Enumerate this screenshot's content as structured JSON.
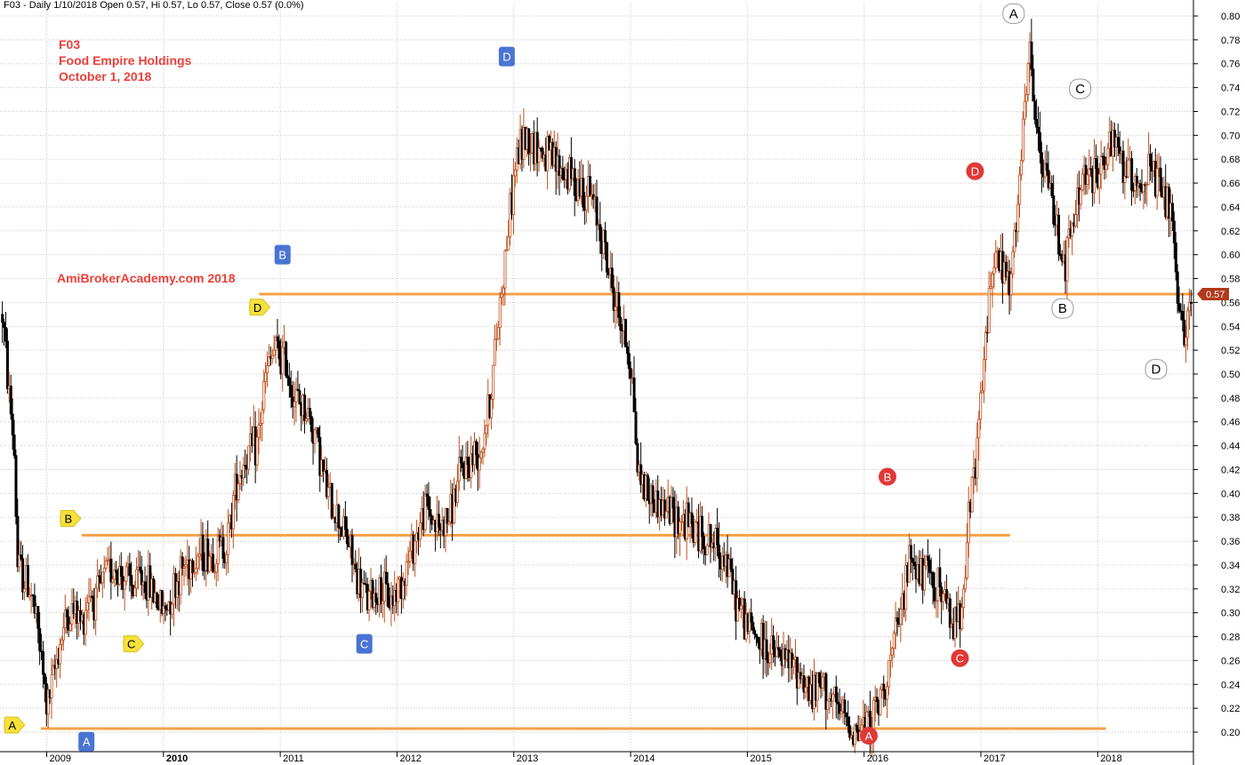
{
  "header": {
    "info_line": "F03 - Daily 1/10/2018 Open 0.57, Hi 0.57, Lo 0.57, Close 0.57 (0.0%)"
  },
  "annotation": {
    "symbol": "F03",
    "company": "Food Empire Holdings",
    "date": "October 1, 2018",
    "watermark": "AmiBrokerAcademy.com  2018"
  },
  "colors": {
    "background": "#ffffff",
    "grid": "#c8c8c8",
    "up_candle": "#c0501e",
    "down_candle": "#000000",
    "support_line": "#f5a04a",
    "price_badge": "#b03a1a",
    "marker_yellow": "#f5e13a",
    "marker_blue": "#4a74d4",
    "marker_red": "#e03838",
    "marker_white": "#ffffff"
  },
  "chart_data": {
    "type": "candlestick",
    "ylim": [
      0.19,
      0.81
    ],
    "y_ticks": [
      "0.80",
      "0.78",
      "0.76",
      "0.74",
      "0.72",
      "0.70",
      "0.68",
      "0.66",
      "0.64",
      "0.62",
      "0.60",
      "0.58",
      "0.56",
      "0.54",
      "0.52",
      "0.50",
      "0.48",
      "0.46",
      "0.44",
      "0.42",
      "0.40",
      "0.38",
      "0.36",
      "0.34",
      "0.32",
      "0.30",
      "0.28",
      "0.26",
      "0.24",
      "0.22",
      "0.20"
    ],
    "x_range": [
      2008.6,
      2018.82
    ],
    "x_ticks": [
      {
        "label": "2009",
        "value": 2009.0,
        "bold": false
      },
      {
        "label": "2010",
        "value": 2010.0,
        "bold": true
      },
      {
        "label": "2011",
        "value": 2011.0,
        "bold": false
      },
      {
        "label": "2012",
        "value": 2012.0,
        "bold": false
      },
      {
        "label": "2013",
        "value": 2013.0,
        "bold": false
      },
      {
        "label": "2014",
        "value": 2014.0,
        "bold": false
      },
      {
        "label": "2015",
        "value": 2015.0,
        "bold": false
      },
      {
        "label": "2016",
        "value": 2016.0,
        "bold": false
      },
      {
        "label": "2017",
        "value": 2017.0,
        "bold": false
      },
      {
        "label": "2018",
        "value": 2018.0,
        "bold": false
      }
    ],
    "last_price_label": "0.57",
    "last_price": 0.567,
    "price_path": [
      [
        2008.62,
        0.55
      ],
      [
        2008.68,
        0.48
      ],
      [
        2008.72,
        0.44
      ],
      [
        2008.75,
        0.34
      ],
      [
        2008.8,
        0.33
      ],
      [
        2008.86,
        0.32
      ],
      [
        2008.93,
        0.28
      ],
      [
        2009.0,
        0.22
      ],
      [
        2009.05,
        0.24
      ],
      [
        2009.1,
        0.27
      ],
      [
        2009.18,
        0.3
      ],
      [
        2009.25,
        0.3
      ],
      [
        2009.3,
        0.29
      ],
      [
        2009.36,
        0.32
      ],
      [
        2009.42,
        0.31
      ],
      [
        2009.5,
        0.33
      ],
      [
        2009.58,
        0.34
      ],
      [
        2009.66,
        0.33
      ],
      [
        2009.75,
        0.32
      ],
      [
        2009.8,
        0.33
      ],
      [
        2009.9,
        0.32
      ],
      [
        2010.0,
        0.3
      ],
      [
        2010.08,
        0.32
      ],
      [
        2010.18,
        0.34
      ],
      [
        2010.3,
        0.35
      ],
      [
        2010.45,
        0.35
      ],
      [
        2010.55,
        0.36
      ],
      [
        2010.62,
        0.41
      ],
      [
        2010.7,
        0.43
      ],
      [
        2010.8,
        0.44
      ],
      [
        2010.88,
        0.5
      ],
      [
        2010.95,
        0.52
      ],
      [
        2011.05,
        0.51
      ],
      [
        2011.12,
        0.48
      ],
      [
        2011.22,
        0.47
      ],
      [
        2011.3,
        0.45
      ],
      [
        2011.4,
        0.4
      ],
      [
        2011.5,
        0.38
      ],
      [
        2011.58,
        0.36
      ],
      [
        2011.65,
        0.33
      ],
      [
        2011.75,
        0.31
      ],
      [
        2011.85,
        0.32
      ],
      [
        2011.95,
        0.31
      ],
      [
        2012.05,
        0.33
      ],
      [
        2012.15,
        0.36
      ],
      [
        2012.25,
        0.39
      ],
      [
        2012.35,
        0.37
      ],
      [
        2012.45,
        0.38
      ],
      [
        2012.55,
        0.42
      ],
      [
        2012.65,
        0.43
      ],
      [
        2012.72,
        0.44
      ],
      [
        2012.8,
        0.48
      ],
      [
        2012.88,
        0.56
      ],
      [
        2012.95,
        0.62
      ],
      [
        2013.02,
        0.68
      ],
      [
        2013.1,
        0.7
      ],
      [
        2013.2,
        0.69
      ],
      [
        2013.3,
        0.68
      ],
      [
        2013.42,
        0.67
      ],
      [
        2013.55,
        0.66
      ],
      [
        2013.65,
        0.65
      ],
      [
        2013.75,
        0.62
      ],
      [
        2013.82,
        0.58
      ],
      [
        2013.9,
        0.55
      ],
      [
        2013.98,
        0.52
      ],
      [
        2014.02,
        0.49
      ],
      [
        2014.06,
        0.42
      ],
      [
        2014.15,
        0.4
      ],
      [
        2014.25,
        0.39
      ],
      [
        2014.4,
        0.38
      ],
      [
        2014.55,
        0.37
      ],
      [
        2014.68,
        0.36
      ],
      [
        2014.8,
        0.35
      ],
      [
        2014.9,
        0.31
      ],
      [
        2015.0,
        0.29
      ],
      [
        2015.15,
        0.27
      ],
      [
        2015.3,
        0.26
      ],
      [
        2015.45,
        0.25
      ],
      [
        2015.55,
        0.23
      ],
      [
        2015.65,
        0.24
      ],
      [
        2015.75,
        0.22
      ],
      [
        2015.85,
        0.21
      ],
      [
        2015.95,
        0.2
      ],
      [
        2016.05,
        0.21
      ],
      [
        2016.12,
        0.22
      ],
      [
        2016.2,
        0.25
      ],
      [
        2016.3,
        0.29
      ],
      [
        2016.4,
        0.35
      ],
      [
        2016.48,
        0.33
      ],
      [
        2016.56,
        0.33
      ],
      [
        2016.65,
        0.32
      ],
      [
        2016.75,
        0.29
      ],
      [
        2016.82,
        0.3
      ],
      [
        2016.9,
        0.38
      ],
      [
        2016.98,
        0.45
      ],
      [
        2017.05,
        0.54
      ],
      [
        2017.1,
        0.6
      ],
      [
        2017.18,
        0.59
      ],
      [
        2017.25,
        0.57
      ],
      [
        2017.3,
        0.62
      ],
      [
        2017.36,
        0.7
      ],
      [
        2017.42,
        0.77
      ],
      [
        2017.5,
        0.68
      ],
      [
        2017.58,
        0.66
      ],
      [
        2017.66,
        0.62
      ],
      [
        2017.72,
        0.59
      ],
      [
        2017.8,
        0.63
      ],
      [
        2017.88,
        0.67
      ],
      [
        2017.95,
        0.66
      ],
      [
        2018.05,
        0.68
      ],
      [
        2018.15,
        0.69
      ],
      [
        2018.25,
        0.67
      ],
      [
        2018.35,
        0.66
      ],
      [
        2018.45,
        0.67
      ],
      [
        2018.55,
        0.65
      ],
      [
        2018.62,
        0.64
      ],
      [
        2018.66,
        0.59
      ],
      [
        2018.7,
        0.54
      ],
      [
        2018.75,
        0.54
      ],
      [
        2018.8,
        0.56
      ]
    ],
    "horizontal_lines": [
      {
        "y": 0.567,
        "x_start": 2010.82,
        "x_end": 2018.82
      },
      {
        "y": 0.365,
        "x_start": 2009.3,
        "x_end": 2017.25
      },
      {
        "y": 0.203,
        "x_start": 2008.95,
        "x_end": 2018.07
      }
    ],
    "markers": [
      {
        "label": "A",
        "style": "yellow",
        "x": 2008.72,
        "y": 0.206
      },
      {
        "label": "B",
        "style": "yellow",
        "x": 2009.2,
        "y": 0.379
      },
      {
        "label": "C",
        "style": "yellow",
        "x": 2009.74,
        "y": 0.274
      },
      {
        "label": "D",
        "style": "yellow",
        "x": 2010.82,
        "y": 0.556
      },
      {
        "label": "A",
        "style": "blue",
        "x": 2009.34,
        "y": 0.192
      },
      {
        "label": "B",
        "style": "blue",
        "x": 2011.02,
        "y": 0.6
      },
      {
        "label": "C",
        "style": "blue",
        "x": 2011.72,
        "y": 0.274
      },
      {
        "label": "D",
        "style": "blue",
        "x": 2012.94,
        "y": 0.766
      },
      {
        "label": "A",
        "style": "red",
        "x": 2016.04,
        "y": 0.197
      },
      {
        "label": "B",
        "style": "red",
        "x": 2016.2,
        "y": 0.414
      },
      {
        "label": "C",
        "style": "red",
        "x": 2016.82,
        "y": 0.262
      },
      {
        "label": "D",
        "style": "red",
        "x": 2016.95,
        "y": 0.67
      },
      {
        "label": "A",
        "style": "white",
        "x": 2017.28,
        "y": 0.802
      },
      {
        "label": "C",
        "style": "white",
        "x": 2017.85,
        "y": 0.739
      },
      {
        "label": "B",
        "style": "white",
        "x": 2017.7,
        "y": 0.555
      },
      {
        "label": "D",
        "style": "white",
        "x": 2018.5,
        "y": 0.504
      }
    ]
  }
}
